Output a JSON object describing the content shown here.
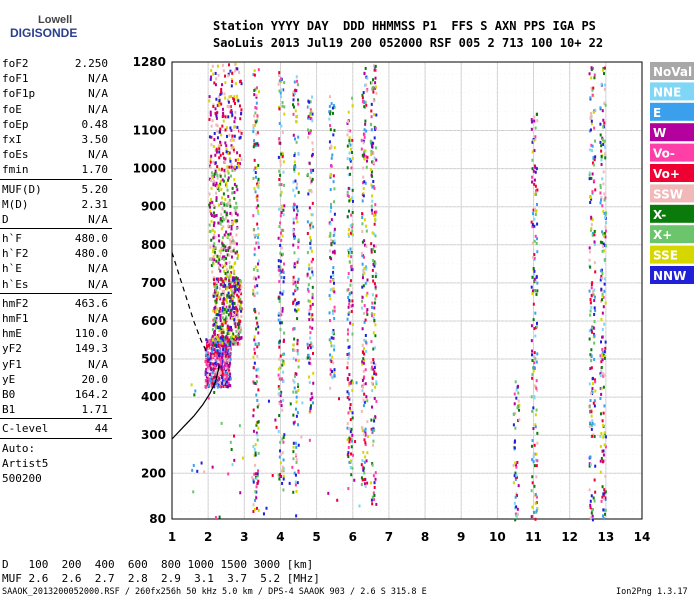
{
  "logo": {
    "top": "Lowell",
    "bottom": "DIGISONDE"
  },
  "header": {
    "line1": "Station YYYY DAY  DDD HHMMSS P1  FFS S AXN PPS IGA PS",
    "line2": "SaoLuis 2013 Jul19 200 052000 RSF 005 2 713 100 10+ 22"
  },
  "params": [
    {
      "k": "foF2",
      "v": "2.250"
    },
    {
      "k": "foF1",
      "v": "N/A"
    },
    {
      "k": "foF1p",
      "v": "N/A"
    },
    {
      "k": "foE",
      "v": "N/A"
    },
    {
      "k": "foEp",
      "v": "0.48"
    },
    {
      "k": "fxI",
      "v": "3.50"
    },
    {
      "k": "foEs",
      "v": "N/A"
    },
    {
      "k": "fmin",
      "v": "1.70"
    },
    {
      "sep": true
    },
    {
      "k": "MUF(D)",
      "v": "5.20"
    },
    {
      "k": "M(D)",
      "v": "2.31"
    },
    {
      "k": "D",
      "v": "N/A"
    },
    {
      "sep": true
    },
    {
      "k": "h`F",
      "v": "480.0"
    },
    {
      "k": "h`F2",
      "v": "480.0"
    },
    {
      "k": "h`E",
      "v": "N/A"
    },
    {
      "k": "h`Es",
      "v": "N/A"
    },
    {
      "sep": true
    },
    {
      "k": "hmF2",
      "v": "463.6"
    },
    {
      "k": "hmF1",
      "v": "N/A"
    },
    {
      "k": "hmE",
      "v": "110.0"
    },
    {
      "k": "yF2",
      "v": "149.3"
    },
    {
      "k": "yF1",
      "v": "N/A"
    },
    {
      "k": "yE",
      "v": "20.0"
    },
    {
      "k": "B0",
      "v": "164.2"
    },
    {
      "k": "B1",
      "v": "1.71"
    },
    {
      "sep": true
    },
    {
      "k": "C-level",
      "v": "44"
    },
    {
      "sep": true
    },
    {
      "k": "Auto:",
      "v": ""
    },
    {
      "k": "Artist5",
      "v": ""
    },
    {
      "k": "500200",
      "v": ""
    }
  ],
  "legend": [
    {
      "label": "NoVal",
      "color": "#a8a8a8"
    },
    {
      "label": "NNE",
      "color": "#7fd6f5"
    },
    {
      "label": "E",
      "color": "#3aa0ee"
    },
    {
      "label": "W",
      "color": "#b4009c"
    },
    {
      "label": "Vo-",
      "color": "#ff3fa8"
    },
    {
      "label": "Vo+",
      "color": "#ee0033"
    },
    {
      "label": "SSW",
      "color": "#f0b8b8"
    },
    {
      "label": "X-",
      "color": "#0a7a0a"
    },
    {
      "label": "X+",
      "color": "#6cc56c"
    },
    {
      "label": "SSE",
      "color": "#d7d700"
    },
    {
      "label": "NNW",
      "color": "#2020d8"
    }
  ],
  "mufTable": {
    "Dlabel": "D   ",
    "Dvalues": "100  200  400  600  800 1000 1500 3000 [km]",
    "Mlabel": "MUF ",
    "Mvalues": "2.6  2.6  2.7  2.8  2.9  3.1  3.7  5.2 [MHz]"
  },
  "footer": {
    "left": "SAAOK_2013200052000.RSF / 260fx256h 50 kHz 5.0 km / DPS-4 SAAOK 903 / 2.6 S 315.8 E",
    "right": "Ion2Png 1.3.17"
  },
  "chart_data": {
    "type": "scatter",
    "xlim": [
      1,
      14
    ],
    "ylim": [
      80,
      1280
    ],
    "xticks": [
      1,
      2,
      3,
      4,
      5,
      6,
      7,
      8,
      9,
      10,
      11,
      12,
      13,
      14
    ],
    "yticks": [
      80,
      200,
      300,
      400,
      500,
      600,
      700,
      800,
      900,
      1000,
      1100,
      1280
    ],
    "grid": true,
    "traces": [
      {
        "name": "profile",
        "style": "solid",
        "x": [
          1.0,
          1.3,
          1.6,
          1.85,
          2.05,
          2.2,
          2.28,
          2.3
        ],
        "y": [
          290,
          320,
          350,
          380,
          410,
          440,
          470,
          485
        ]
      },
      {
        "name": "muf-curve",
        "style": "dashed",
        "x": [
          1.0,
          1.2,
          1.4,
          1.6,
          1.8,
          2.0
        ],
        "y": [
          780,
          720,
          660,
          600,
          550,
          510
        ]
      }
    ]
  }
}
